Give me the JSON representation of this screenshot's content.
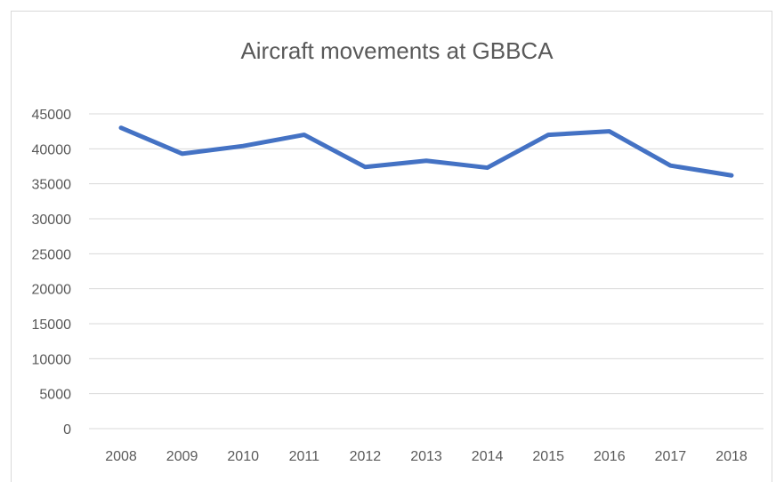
{
  "chart_data": {
    "type": "line",
    "title": "Aircraft movements at GBBCA",
    "xlabel": "",
    "ylabel": "",
    "categories": [
      "2008",
      "2009",
      "2010",
      "2011",
      "2012",
      "2013",
      "2014",
      "2015",
      "2016",
      "2017",
      "2018"
    ],
    "series": [
      {
        "values": [
          43000,
          39300,
          40400,
          42000,
          37400,
          38300,
          37300,
          42000,
          42500,
          37600,
          36200
        ]
      }
    ],
    "ylim": [
      0,
      45000
    ],
    "ytick_step": 5000,
    "yticks": [
      "0",
      "5000",
      "10000",
      "15000",
      "20000",
      "25000",
      "30000",
      "35000",
      "40000",
      "45000"
    ],
    "grid": true,
    "legend": "none",
    "line_color": "#4472c4"
  }
}
